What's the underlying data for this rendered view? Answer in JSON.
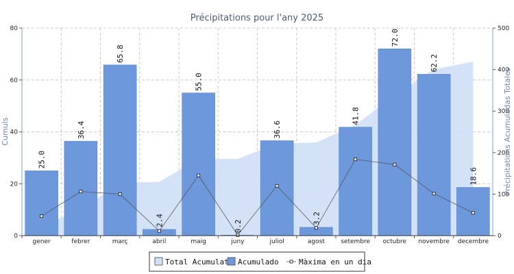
{
  "chart_data": {
    "type": "bar",
    "title": "Précipitations pour l'any 2025",
    "ylabel": "Cumuls",
    "y2label": "Précipitations Acumuladas Totales",
    "categories": [
      "gener",
      "febrer",
      "març",
      "abril",
      "maig",
      "juny",
      "juliol",
      "agost",
      "setembre",
      "octubre",
      "novembre",
      "decembre"
    ],
    "ylim": [
      0,
      80
    ],
    "y2lim": [
      0,
      500
    ],
    "yticks": [
      "0",
      "20",
      "40",
      "60",
      "80"
    ],
    "y2ticks": [
      "0",
      "100",
      "200",
      "300",
      "400",
      "500"
    ],
    "grid": true,
    "series": [
      {
        "name": "Total Acumulat",
        "kind": "area",
        "axis": "right",
        "color": "#d2e0f8",
        "values": [
          25.0,
          61.4,
          127.2,
          129.6,
          184.6,
          184.8,
          221.4,
          224.6,
          266.4,
          338.4,
          400.6,
          419.2
        ]
      },
      {
        "name": "Acumulado",
        "kind": "bar",
        "axis": "left",
        "color": "#6e98dc",
        "values": [
          25.0,
          36.4,
          65.8,
          2.4,
          55.0,
          0.2,
          36.6,
          3.2,
          41.8,
          72.0,
          62.2,
          18.6
        ],
        "labels": [
          "25.0",
          "36.4",
          "65.8",
          "2.4",
          "55.0",
          "0.2",
          "36.6",
          "3.2",
          "41.8",
          "72.0",
          "62.2",
          "18.6"
        ]
      },
      {
        "name": "Màxima en un dia",
        "kind": "line",
        "axis": "left",
        "color": "#555555",
        "values": [
          7.5,
          17,
          16,
          1.8,
          23.2,
          0.2,
          19.2,
          3,
          29.4,
          27.4,
          16.2,
          8.8
        ]
      }
    ],
    "legend": {
      "position": "bottom",
      "items": [
        "Total Acumulat",
        "Acumulado",
        "Màxima en un dia"
      ]
    }
  }
}
